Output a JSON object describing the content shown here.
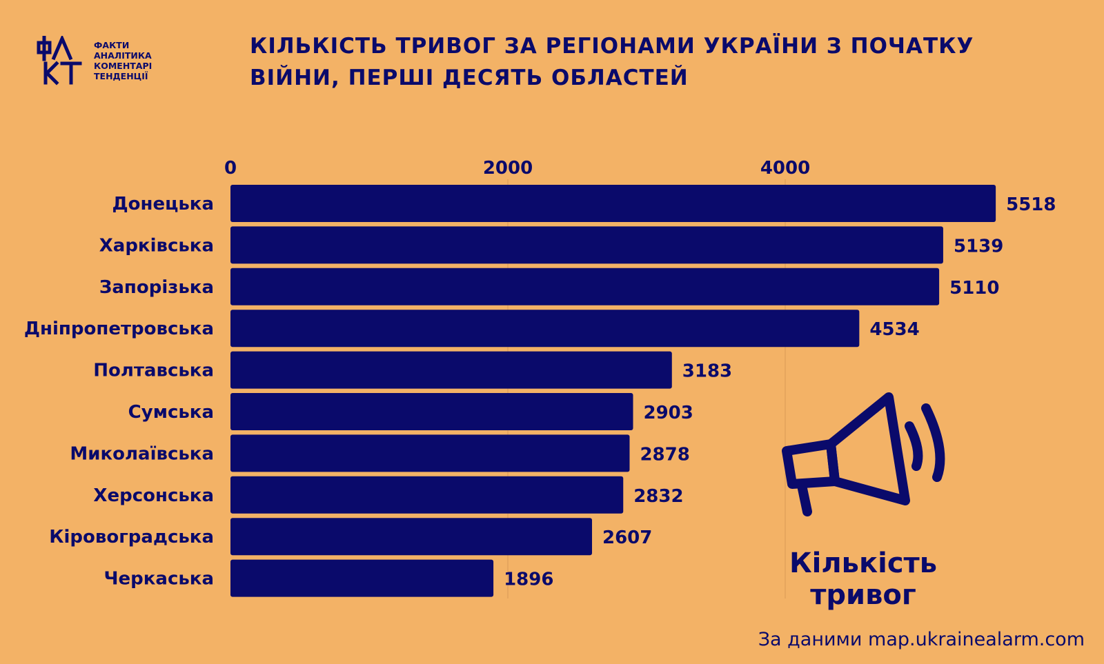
{
  "logo": {
    "mark": "ФАКТ",
    "lines": [
      "ФАКТИ",
      "АНАЛІТИКА",
      "КОМЕНТАРІ",
      "ТЕНДЕНЦІЇ"
    ]
  },
  "title": {
    "line1": "КІЛЬКІСТЬ ТРИВОГ ЗА РЕГІОНАМИ УКРАЇНИ З ПОЧАТКУ",
    "line2": "ВІЙНИ, ПЕРШІ ДЕСЯТЬ ОБЛАСТЕЙ"
  },
  "colors": {
    "background": "#F3B266",
    "bar": "#0A0A6B",
    "text": "#0A0A6B",
    "grid": "#D99A55"
  },
  "chart_data": {
    "type": "bar",
    "orientation": "horizontal",
    "categories": [
      "Донецька",
      "Харківська",
      "Запорізька",
      "Дніпропетровська",
      "Полтавська",
      "Сумська",
      "Миколаївська",
      "Херсонська",
      "Кіровоградська",
      "Черкаська"
    ],
    "values": [
      5518,
      5139,
      5110,
      4534,
      3183,
      2903,
      2878,
      2832,
      2607,
      1896
    ],
    "xticks": [
      "0",
      "2000",
      "4000"
    ],
    "xlim": [
      0,
      6000
    ],
    "x_axis_position": "top",
    "grid": true,
    "data_labels": true,
    "title": "",
    "xlabel": "",
    "ylabel": ""
  },
  "icon": "megaphone-icon",
  "legend_label": "Кількість тривог",
  "footer": "За даними map.ukrainealarm.com"
}
